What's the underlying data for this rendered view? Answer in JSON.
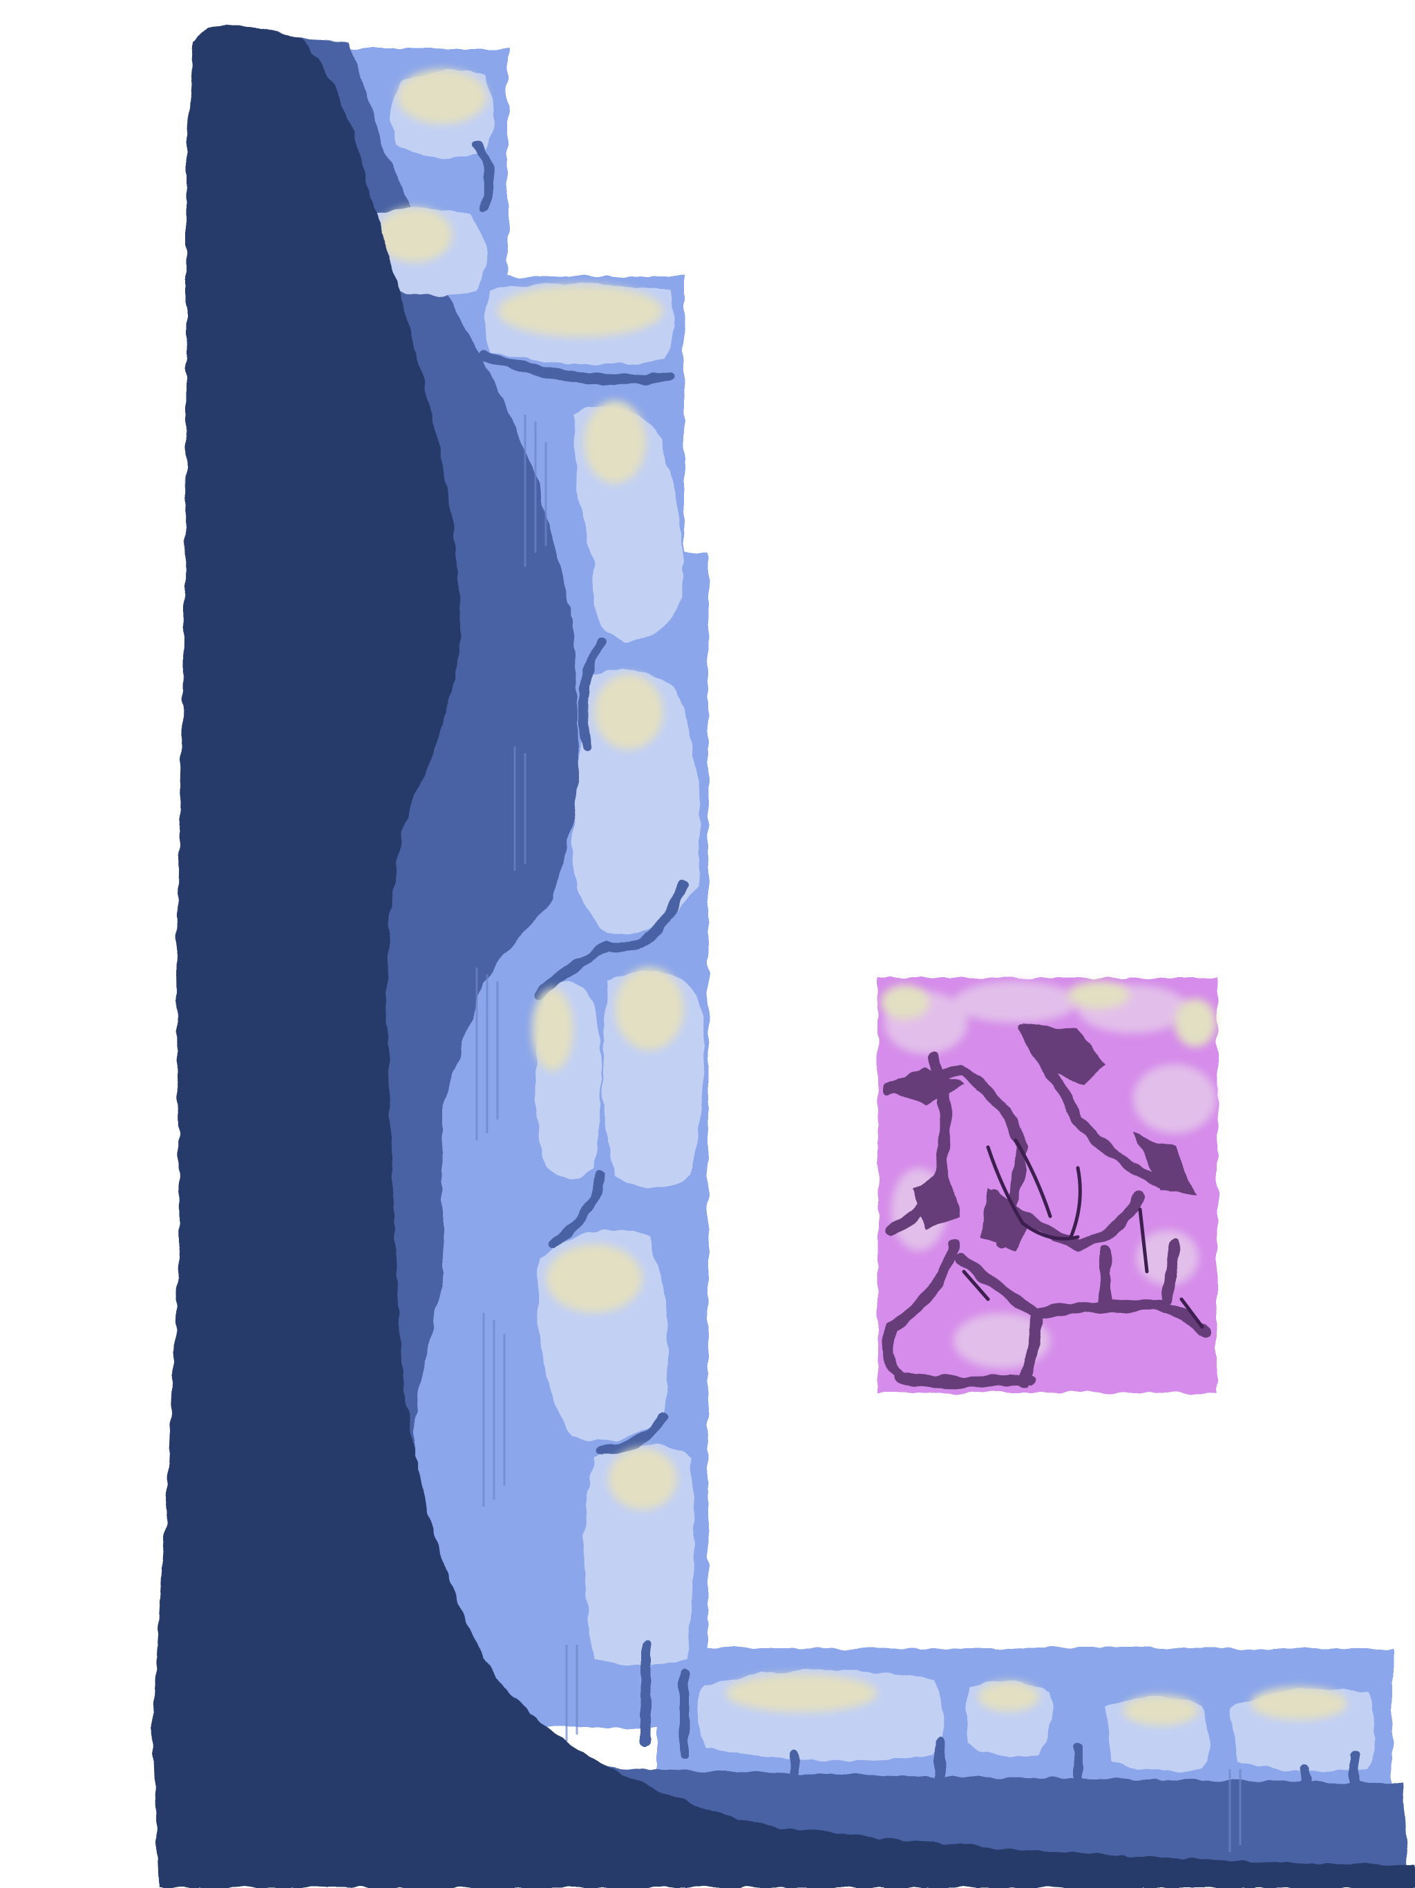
{
  "artwork": {
    "subject": "stone-cliff-and-cracked-tile-painting",
    "palette": {
      "background": "#ffffff",
      "shadow_navy": "#263a6b",
      "mid_blue": "#4862a3",
      "light_blue": "#8ba6ea",
      "pale_blue": "#c2d0f4",
      "highlight_cream": "#e2dfc3",
      "tile_violet": "#d58cea",
      "tile_lavender": "#e2bfea",
      "crack_purple": "#663e79"
    }
  }
}
